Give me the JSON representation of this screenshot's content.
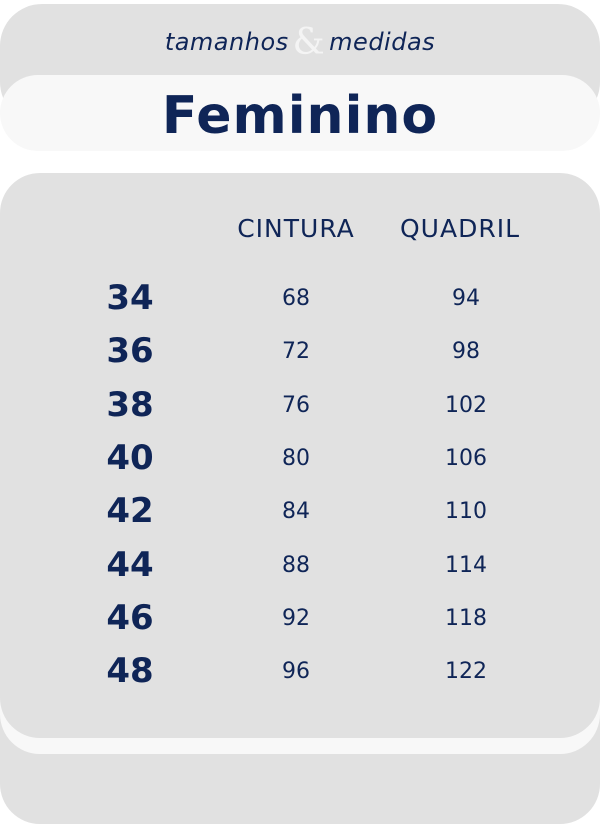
{
  "header": {
    "subtitle_left": "tamanhos",
    "ampersand": "&",
    "subtitle_right": "medidas",
    "title": "Feminino"
  },
  "table": {
    "columns": [
      "CINTURA",
      "QUADRIL"
    ],
    "rows": [
      {
        "size": "34",
        "cintura": "68",
        "quadril": "94"
      },
      {
        "size": "36",
        "cintura": "72",
        "quadril": "98"
      },
      {
        "size": "38",
        "cintura": "76",
        "quadril": "102"
      },
      {
        "size": "40",
        "cintura": "80",
        "quadril": "106"
      },
      {
        "size": "42",
        "cintura": "84",
        "quadril": "110"
      },
      {
        "size": "44",
        "cintura": "88",
        "quadril": "114"
      },
      {
        "size": "46",
        "cintura": "92",
        "quadril": "118"
      },
      {
        "size": "48",
        "cintura": "96",
        "quadril": "122"
      }
    ]
  },
  "colors": {
    "text": "#0f2557",
    "panel": "#e1e1e1",
    "highlight": "#f8f8f8"
  }
}
